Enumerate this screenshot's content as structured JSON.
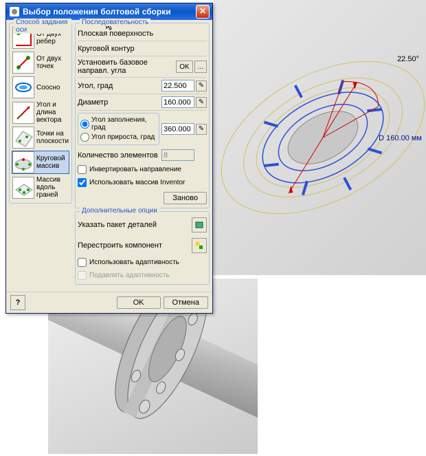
{
  "dialog": {
    "title": "Выбор положения болтовой сборки",
    "axis_method_title": "Способ задания оси",
    "axis_items": [
      {
        "label": "От двух ребер",
        "name": "axis-two-edges"
      },
      {
        "label": "От двух точек",
        "name": "axis-two-points"
      },
      {
        "label": "Соосно",
        "name": "axis-coaxial"
      },
      {
        "label": "Угол и длина вектора",
        "name": "axis-angle-vector"
      },
      {
        "label": "Точки на плоскости",
        "name": "axis-points-plane"
      },
      {
        "label": "Круговой массив",
        "name": "axis-circular-array"
      },
      {
        "label": "Массив вдоль граней",
        "name": "axis-array-faces"
      }
    ],
    "selected_axis_index": 5,
    "sequence_title": "Последовательность",
    "seq": {
      "flat_surface": "Плоская поверхность",
      "circular_contour": "Круговой контур",
      "set_base_dir": "Установить базовое направл. угла",
      "ok_btn": "OK",
      "angle_label": "Угол, град",
      "angle_value": "22.500",
      "diameter_label": "Диаметр",
      "diameter_value": "160.000",
      "fill_angle": "Угол заполнения, град",
      "incr_angle": "Угол прироста, град",
      "fill_value": "360.000",
      "count_label": "Количество элементов",
      "count_value": "8",
      "invert_dir": "Инвертировать направление",
      "use_inventor": "Использовать массив Inventor",
      "restart_btn": "Заново"
    },
    "addl_title": "Дополнительные опции",
    "addl": {
      "specify_package": "Указать пакет деталей",
      "rebuild_component": "Перестроить компонент",
      "use_adaptivity": "Использовать адаптивность",
      "suppress_adaptivity": "Подавлять адаптивность"
    },
    "ok": "OK",
    "cancel": "Отмена",
    "help": "?"
  },
  "viewport": {
    "angle_label": "22.50°",
    "diameter_label": "D 160.00 мм"
  },
  "colors": {
    "titlebar": "#0a5acb",
    "button_bg": "#ece9d8",
    "link": "#2255cc",
    "blue": "#2e4fd6",
    "orange": "#ff8c00",
    "red": "#d00000"
  }
}
